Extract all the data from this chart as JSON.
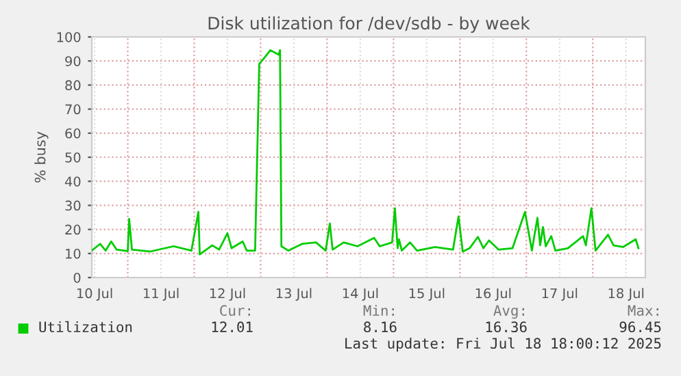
{
  "chart_data": {
    "type": "line",
    "title": "Disk utilization for /dev/sdb - by week",
    "ylabel": "% busy",
    "x": [
      "2025-07-10T11:00",
      "2025-07-10T14:00",
      "2025-07-10T16:00",
      "2025-07-10T18:00",
      "2025-07-10T20:00",
      "2025-07-11T00:00",
      "2025-07-11T00:30",
      "2025-07-11T01:30",
      "2025-07-11T08:00",
      "2025-07-11T16:30",
      "2025-07-11T23:00",
      "2025-07-12T01:30",
      "2025-07-12T02:00",
      "2025-07-12T06:30",
      "2025-07-12T09:00",
      "2025-07-12T12:00",
      "2025-07-12T13:30",
      "2025-07-12T17:30",
      "2025-07-12T19:00",
      "2025-07-12T22:00",
      "2025-07-12T23:30",
      "2025-07-13T01:00",
      "2025-07-13T03:30",
      "2025-07-13T06:30",
      "2025-07-13T07:00",
      "2025-07-13T07:30",
      "2025-07-13T10:00",
      "2025-07-13T15:00",
      "2025-07-13T20:00",
      "2025-07-13T23:30",
      "2025-07-14T01:00",
      "2025-07-14T02:00",
      "2025-07-14T06:00",
      "2025-07-14T11:00",
      "2025-07-14T17:00",
      "2025-07-14T19:00",
      "2025-07-14T23:30",
      "2025-07-15T00:30",
      "2025-07-15T01:30",
      "2025-07-15T02:00",
      "2025-07-15T03:00",
      "2025-07-15T06:00",
      "2025-07-15T08:30",
      "2025-07-15T15:00",
      "2025-07-15T21:30",
      "2025-07-15T23:30",
      "2025-07-16T01:00",
      "2025-07-16T03:30",
      "2025-07-16T06:30",
      "2025-07-16T08:30",
      "2025-07-16T10:30",
      "2025-07-16T14:00",
      "2025-07-16T19:00",
      "2025-07-16T23:30",
      "2025-07-17T02:00",
      "2025-07-17T04:00",
      "2025-07-17T05:00",
      "2025-07-17T06:00",
      "2025-07-17T07:00",
      "2025-07-17T09:00",
      "2025-07-17T10:30",
      "2025-07-17T15:00",
      "2025-07-17T20:30",
      "2025-07-17T21:30",
      "2025-07-17T23:30",
      "2025-07-18T01:00",
      "2025-07-18T05:30",
      "2025-07-18T07:30",
      "2025-07-18T11:00",
      "2025-07-18T15:30",
      "2025-07-18T16:30"
    ],
    "series": [
      {
        "name": "Utilization",
        "color": "#00cc00",
        "values": [
          11.2,
          14.0,
          11.2,
          15.0,
          11.6,
          11.0,
          24.4,
          11.6,
          10.8,
          13.0,
          11.2,
          27.3,
          9.6,
          13.4,
          11.6,
          18.4,
          12.2,
          15.0,
          11.2,
          11.2,
          88.9,
          90.8,
          94.5,
          92.6,
          94.5,
          13.0,
          11.2,
          14.0,
          14.6,
          11.2,
          22.5,
          11.6,
          14.6,
          13.0,
          16.5,
          13.0,
          14.6,
          28.8,
          12.2,
          15.9,
          11.2,
          14.6,
          11.2,
          12.7,
          11.6,
          25.4,
          10.8,
          12.2,
          16.9,
          12.2,
          15.4,
          11.6,
          12.2,
          27.3,
          11.2,
          24.8,
          13.4,
          21.0,
          13.0,
          17.2,
          11.2,
          12.2,
          17.2,
          13.4,
          28.8,
          11.2,
          17.8,
          13.4,
          12.7,
          15.9,
          12.2
        ]
      }
    ],
    "xlim": [
      "2025-07-10T11:00",
      "2025-07-18T19:00"
    ],
    "xticks": [
      {
        "value": "2025-07-10T12:00",
        "label": "10 Jul"
      },
      {
        "value": "2025-07-11T00:00",
        "label": null
      },
      {
        "value": "2025-07-11T12:00",
        "label": "11 Jul"
      },
      {
        "value": "2025-07-12T00:00",
        "label": null
      },
      {
        "value": "2025-07-12T12:00",
        "label": "12 Jul"
      },
      {
        "value": "2025-07-13T00:00",
        "label": null
      },
      {
        "value": "2025-07-13T12:00",
        "label": "13 Jul"
      },
      {
        "value": "2025-07-14T00:00",
        "label": null
      },
      {
        "value": "2025-07-14T12:00",
        "label": "14 Jul"
      },
      {
        "value": "2025-07-15T00:00",
        "label": null
      },
      {
        "value": "2025-07-15T12:00",
        "label": "15 Jul"
      },
      {
        "value": "2025-07-16T00:00",
        "label": null
      },
      {
        "value": "2025-07-16T12:00",
        "label": "16 Jul"
      },
      {
        "value": "2025-07-17T00:00",
        "label": null
      },
      {
        "value": "2025-07-17T12:00",
        "label": "17 Jul"
      },
      {
        "value": "2025-07-18T00:00",
        "label": null
      },
      {
        "value": "2025-07-18T12:00",
        "label": "18 Jul"
      }
    ],
    "ylim": [
      0,
      100
    ],
    "yticks": [
      0,
      10,
      20,
      30,
      40,
      50,
      60,
      70,
      80,
      90,
      100
    ],
    "grid": true,
    "legend": "bottom",
    "marker": "none",
    "line_style": "solid",
    "annotations": [
      "Cur:",
      "12.01",
      "Min:",
      "8.16",
      "Avg:",
      "16.36",
      "Max:",
      "96.45",
      "Last update: Fri Jul 18 18:00:12 2025"
    ]
  }
}
